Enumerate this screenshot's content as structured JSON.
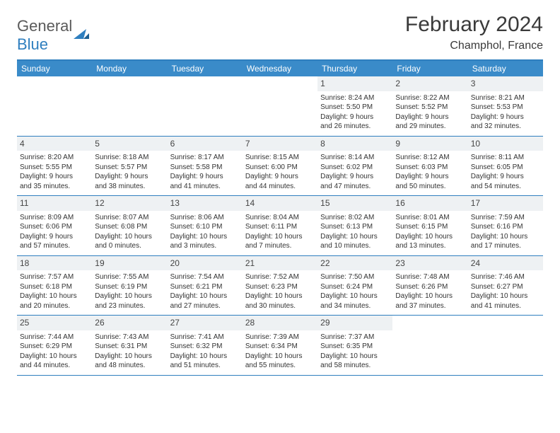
{
  "logo": {
    "text1": "General",
    "text2": "Blue"
  },
  "title": "February 2024",
  "location": "Champhol, France",
  "header_color": "#3a8bc9",
  "border_color": "#2f7fbf",
  "daynum_bg": "#eef1f3",
  "weekdays": [
    "Sunday",
    "Monday",
    "Tuesday",
    "Wednesday",
    "Thursday",
    "Friday",
    "Saturday"
  ],
  "weeks": [
    [
      null,
      null,
      null,
      null,
      {
        "n": "1",
        "sr": "Sunrise: 8:24 AM",
        "ss": "Sunset: 5:50 PM",
        "d1": "Daylight: 9 hours",
        "d2": "and 26 minutes."
      },
      {
        "n": "2",
        "sr": "Sunrise: 8:22 AM",
        "ss": "Sunset: 5:52 PM",
        "d1": "Daylight: 9 hours",
        "d2": "and 29 minutes."
      },
      {
        "n": "3",
        "sr": "Sunrise: 8:21 AM",
        "ss": "Sunset: 5:53 PM",
        "d1": "Daylight: 9 hours",
        "d2": "and 32 minutes."
      }
    ],
    [
      {
        "n": "4",
        "sr": "Sunrise: 8:20 AM",
        "ss": "Sunset: 5:55 PM",
        "d1": "Daylight: 9 hours",
        "d2": "and 35 minutes."
      },
      {
        "n": "5",
        "sr": "Sunrise: 8:18 AM",
        "ss": "Sunset: 5:57 PM",
        "d1": "Daylight: 9 hours",
        "d2": "and 38 minutes."
      },
      {
        "n": "6",
        "sr": "Sunrise: 8:17 AM",
        "ss": "Sunset: 5:58 PM",
        "d1": "Daylight: 9 hours",
        "d2": "and 41 minutes."
      },
      {
        "n": "7",
        "sr": "Sunrise: 8:15 AM",
        "ss": "Sunset: 6:00 PM",
        "d1": "Daylight: 9 hours",
        "d2": "and 44 minutes."
      },
      {
        "n": "8",
        "sr": "Sunrise: 8:14 AM",
        "ss": "Sunset: 6:02 PM",
        "d1": "Daylight: 9 hours",
        "d2": "and 47 minutes."
      },
      {
        "n": "9",
        "sr": "Sunrise: 8:12 AM",
        "ss": "Sunset: 6:03 PM",
        "d1": "Daylight: 9 hours",
        "d2": "and 50 minutes."
      },
      {
        "n": "10",
        "sr": "Sunrise: 8:11 AM",
        "ss": "Sunset: 6:05 PM",
        "d1": "Daylight: 9 hours",
        "d2": "and 54 minutes."
      }
    ],
    [
      {
        "n": "11",
        "sr": "Sunrise: 8:09 AM",
        "ss": "Sunset: 6:06 PM",
        "d1": "Daylight: 9 hours",
        "d2": "and 57 minutes."
      },
      {
        "n": "12",
        "sr": "Sunrise: 8:07 AM",
        "ss": "Sunset: 6:08 PM",
        "d1": "Daylight: 10 hours",
        "d2": "and 0 minutes."
      },
      {
        "n": "13",
        "sr": "Sunrise: 8:06 AM",
        "ss": "Sunset: 6:10 PM",
        "d1": "Daylight: 10 hours",
        "d2": "and 3 minutes."
      },
      {
        "n": "14",
        "sr": "Sunrise: 8:04 AM",
        "ss": "Sunset: 6:11 PM",
        "d1": "Daylight: 10 hours",
        "d2": "and 7 minutes."
      },
      {
        "n": "15",
        "sr": "Sunrise: 8:02 AM",
        "ss": "Sunset: 6:13 PM",
        "d1": "Daylight: 10 hours",
        "d2": "and 10 minutes."
      },
      {
        "n": "16",
        "sr": "Sunrise: 8:01 AM",
        "ss": "Sunset: 6:15 PM",
        "d1": "Daylight: 10 hours",
        "d2": "and 13 minutes."
      },
      {
        "n": "17",
        "sr": "Sunrise: 7:59 AM",
        "ss": "Sunset: 6:16 PM",
        "d1": "Daylight: 10 hours",
        "d2": "and 17 minutes."
      }
    ],
    [
      {
        "n": "18",
        "sr": "Sunrise: 7:57 AM",
        "ss": "Sunset: 6:18 PM",
        "d1": "Daylight: 10 hours",
        "d2": "and 20 minutes."
      },
      {
        "n": "19",
        "sr": "Sunrise: 7:55 AM",
        "ss": "Sunset: 6:19 PM",
        "d1": "Daylight: 10 hours",
        "d2": "and 23 minutes."
      },
      {
        "n": "20",
        "sr": "Sunrise: 7:54 AM",
        "ss": "Sunset: 6:21 PM",
        "d1": "Daylight: 10 hours",
        "d2": "and 27 minutes."
      },
      {
        "n": "21",
        "sr": "Sunrise: 7:52 AM",
        "ss": "Sunset: 6:23 PM",
        "d1": "Daylight: 10 hours",
        "d2": "and 30 minutes."
      },
      {
        "n": "22",
        "sr": "Sunrise: 7:50 AM",
        "ss": "Sunset: 6:24 PM",
        "d1": "Daylight: 10 hours",
        "d2": "and 34 minutes."
      },
      {
        "n": "23",
        "sr": "Sunrise: 7:48 AM",
        "ss": "Sunset: 6:26 PM",
        "d1": "Daylight: 10 hours",
        "d2": "and 37 minutes."
      },
      {
        "n": "24",
        "sr": "Sunrise: 7:46 AM",
        "ss": "Sunset: 6:27 PM",
        "d1": "Daylight: 10 hours",
        "d2": "and 41 minutes."
      }
    ],
    [
      {
        "n": "25",
        "sr": "Sunrise: 7:44 AM",
        "ss": "Sunset: 6:29 PM",
        "d1": "Daylight: 10 hours",
        "d2": "and 44 minutes."
      },
      {
        "n": "26",
        "sr": "Sunrise: 7:43 AM",
        "ss": "Sunset: 6:31 PM",
        "d1": "Daylight: 10 hours",
        "d2": "and 48 minutes."
      },
      {
        "n": "27",
        "sr": "Sunrise: 7:41 AM",
        "ss": "Sunset: 6:32 PM",
        "d1": "Daylight: 10 hours",
        "d2": "and 51 minutes."
      },
      {
        "n": "28",
        "sr": "Sunrise: 7:39 AM",
        "ss": "Sunset: 6:34 PM",
        "d1": "Daylight: 10 hours",
        "d2": "and 55 minutes."
      },
      {
        "n": "29",
        "sr": "Sunrise: 7:37 AM",
        "ss": "Sunset: 6:35 PM",
        "d1": "Daylight: 10 hours",
        "d2": "and 58 minutes."
      },
      null,
      null
    ]
  ]
}
